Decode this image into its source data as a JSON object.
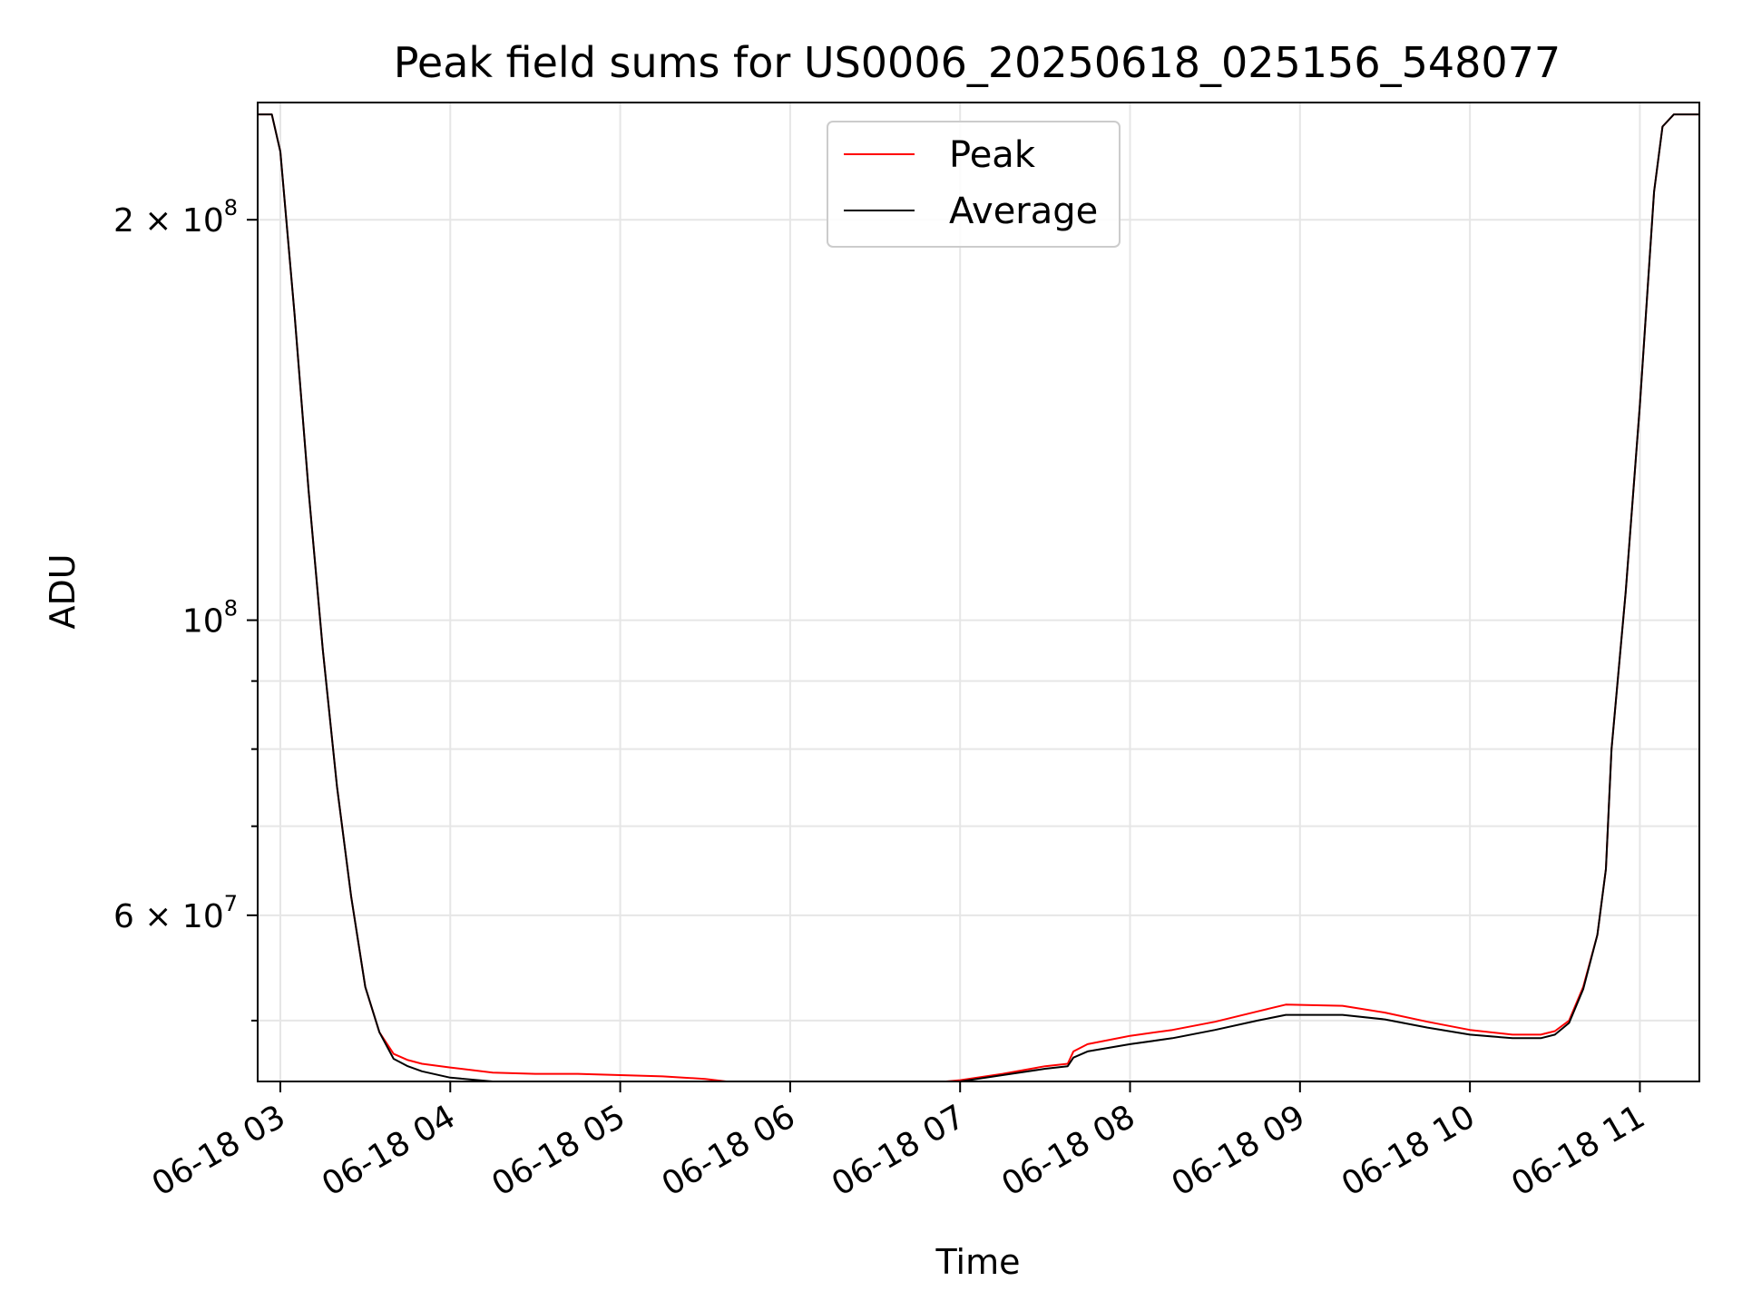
{
  "chart_data": {
    "type": "line",
    "title": "Peak field sums for US0006_20250618_025156_548077",
    "xlabel": "Time",
    "ylabel": "ADU",
    "x_axis": {
      "type": "time",
      "range": [
        "06-18 02:52",
        "06-18 11:21"
      ],
      "ticks": [
        "06-18 03",
        "06-18 04",
        "06-18 05",
        "06-18 06",
        "06-18 07",
        "06-18 08",
        "06-18 09",
        "06-18 10",
        "06-18 11"
      ]
    },
    "y_axis": {
      "scale": "log",
      "range": [
        45000000,
        245000000
      ],
      "major_ticks": [
        {
          "value": 200000000,
          "mantissa": "2",
          "exponent": "8"
        },
        {
          "value": 100000000,
          "mantissa": "",
          "exponent": "8"
        },
        {
          "value": 60000000,
          "mantissa": "6",
          "exponent": "7"
        }
      ],
      "minor_ticks": [
        50000000,
        70000000,
        80000000,
        90000000
      ]
    },
    "grid": true,
    "legend": {
      "position": "top-center",
      "entries": [
        {
          "label": "Peak",
          "color": "#ff0000"
        },
        {
          "label": "Average",
          "color": "#000000"
        }
      ]
    },
    "series": [
      {
        "name": "Peak",
        "color": "#ff0000",
        "x": [
          "02:52",
          "02:57",
          "03:00",
          "03:05",
          "03:10",
          "03:15",
          "03:20",
          "03:25",
          "03:30",
          "03:35",
          "03:40",
          "03:45",
          "03:50",
          "04:00",
          "04:15",
          "04:30",
          "04:45",
          "05:00",
          "05:15",
          "05:30",
          "05:45",
          "06:00",
          "06:15",
          "06:30",
          "06:45",
          "07:00",
          "07:15",
          "07:30",
          "07:38",
          "07:40",
          "07:45",
          "08:00",
          "08:15",
          "08:30",
          "08:45",
          "08:55",
          "09:15",
          "09:30",
          "09:45",
          "10:00",
          "10:15",
          "10:25",
          "10:30",
          "10:35",
          "10:40",
          "10:45",
          "10:48",
          "10:50",
          "10:55",
          "11:00",
          "11:05",
          "11:08",
          "11:12",
          "11:21"
        ],
        "y": [
          240000000,
          240000000,
          225000000,
          170000000,
          125000000,
          95000000,
          75000000,
          62000000,
          53000000,
          49000000,
          47200000,
          46700000,
          46400000,
          46100000,
          45700000,
          45600000,
          45600000,
          45500000,
          45400000,
          45200000,
          44800000,
          44800000,
          44700000,
          44800000,
          44800000,
          45100000,
          45600000,
          46200000,
          46400000,
          47400000,
          48000000,
          48700000,
          49200000,
          49900000,
          50800000,
          51400000,
          51300000,
          50700000,
          49900000,
          49200000,
          48800000,
          48800000,
          49100000,
          50000000,
          53000000,
          58000000,
          65000000,
          80000000,
          105000000,
          145000000,
          210000000,
          235000000,
          240000000,
          240000000
        ]
      },
      {
        "name": "Average",
        "color": "#000000",
        "x": [
          "02:52",
          "02:57",
          "03:00",
          "03:05",
          "03:10",
          "03:15",
          "03:20",
          "03:25",
          "03:30",
          "03:35",
          "03:40",
          "03:45",
          "03:50",
          "04:00",
          "04:15",
          "04:30",
          "04:45",
          "05:00",
          "05:15",
          "05:30",
          "05:45",
          "06:00",
          "06:15",
          "06:30",
          "06:45",
          "07:00",
          "07:15",
          "07:30",
          "07:38",
          "07:40",
          "07:45",
          "08:00",
          "08:15",
          "08:30",
          "08:45",
          "08:55",
          "09:15",
          "09:30",
          "09:45",
          "10:00",
          "10:15",
          "10:25",
          "10:30",
          "10:35",
          "10:40",
          "10:45",
          "10:48",
          "10:50",
          "10:55",
          "11:00",
          "11:05",
          "11:08",
          "11:12",
          "11:21"
        ],
        "y": [
          240000000,
          240000000,
          225000000,
          170000000,
          125000000,
          95000000,
          75000000,
          62000000,
          53000000,
          49000000,
          46800000,
          46200000,
          45800000,
          45300000,
          45000000,
          44800000,
          44600000,
          44500000,
          44400000,
          44200000,
          44000000,
          44500000,
          44600000,
          44700000,
          44700000,
          45000000,
          45500000,
          46000000,
          46200000,
          46900000,
          47400000,
          48000000,
          48500000,
          49200000,
          50000000,
          50500000,
          50500000,
          50100000,
          49400000,
          48800000,
          48500000,
          48500000,
          48800000,
          49800000,
          52800000,
          58000000,
          65000000,
          80000000,
          105000000,
          145000000,
          210000000,
          235000000,
          240000000,
          240000000
        ]
      }
    ]
  }
}
